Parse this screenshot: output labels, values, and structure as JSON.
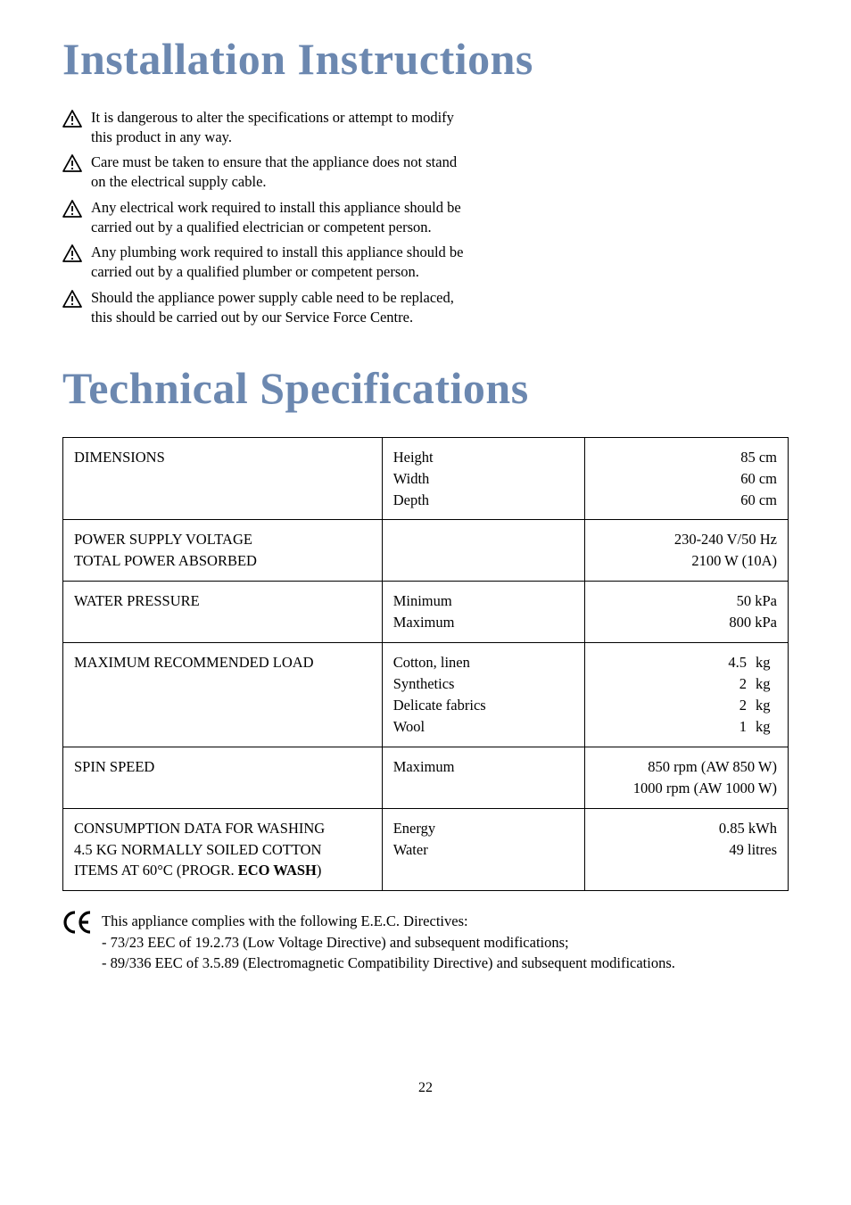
{
  "titles": {
    "installation": "Installation Instructions",
    "technical": "Technical Specifications",
    "title_color": "#6c88b0",
    "title_fontsize": 50
  },
  "warnings": [
    "It is dangerous to alter the specifications or attempt to modify this product in any way.",
    "Care must be taken to ensure that the appliance does not stand on the electrical supply cable.",
    "Any electrical work required to install this appliance should be carried out by a qualified electrician or competent person.",
    "Any plumbing work required to install this appliance should be carried out by a qualified plumber or competent person.",
    "Should the appliance power supply cable need to be replaced, this should be carried out by our Service Force Centre."
  ],
  "spec_table": {
    "rows": [
      {
        "c1": "DIMENSIONS",
        "c2": [
          "Height",
          "Width",
          "Depth"
        ],
        "c3": [
          "85 cm",
          "60 cm",
          "60 cm"
        ]
      },
      {
        "c1": "POWER SUPPLY VOLTAGE\nTOTAL POWER ABSORBED",
        "c2": [],
        "c3": [
          "230-240 V/50 Hz",
          "2100 W (10A)"
        ]
      },
      {
        "c1": "WATER PRESSURE",
        "c2": [
          "Minimum",
          "Maximum"
        ],
        "c3": [
          "50 kPa",
          "800 kPa"
        ]
      },
      {
        "c1": "MAXIMUM RECOMMENDED LOAD",
        "c2": [
          "Cotton, linen",
          "Synthetics",
          "Delicate fabrics",
          "Wool"
        ],
        "c3_units": [
          {
            "num": "4.5",
            "u": "kg"
          },
          {
            "num": "2",
            "u": "kg"
          },
          {
            "num": "2",
            "u": "kg"
          },
          {
            "num": "1",
            "u": "kg"
          }
        ]
      },
      {
        "c1": "SPIN SPEED",
        "c2": [
          "Maximum"
        ],
        "c3": [
          "850 rpm (AW 850 W)",
          "1000 rpm (AW 1000 W)"
        ]
      },
      {
        "c1_lines": [
          {
            "text": "CONSUMPTION DATA FOR WASHING",
            "bold": false
          },
          {
            "text": "4.5 KG NORMALLY SOILED COTTON",
            "bold": false
          },
          {
            "text_parts": [
              {
                "text": "ITEMS AT 60°C (PROGR. ",
                "bold": false
              },
              {
                "text": "ECO WASH",
                "bold": true
              },
              {
                "text": ")",
                "bold": false
              }
            ]
          }
        ],
        "c2": [
          "Energy",
          "Water"
        ],
        "c3": [
          "0.85 kWh",
          "49 litres"
        ]
      }
    ]
  },
  "ce": {
    "mark": "CE",
    "lines": [
      "This appliance complies with the following E.E.C. Directives:",
      "- 73/23 EEC of 19.2.73 (Low Voltage Directive) and subsequent modifications;",
      "- 89/336 EEC of 3.5.89 (Electromagnetic Compatibility Directive) and subsequent modifications."
    ]
  },
  "page_number": "22"
}
